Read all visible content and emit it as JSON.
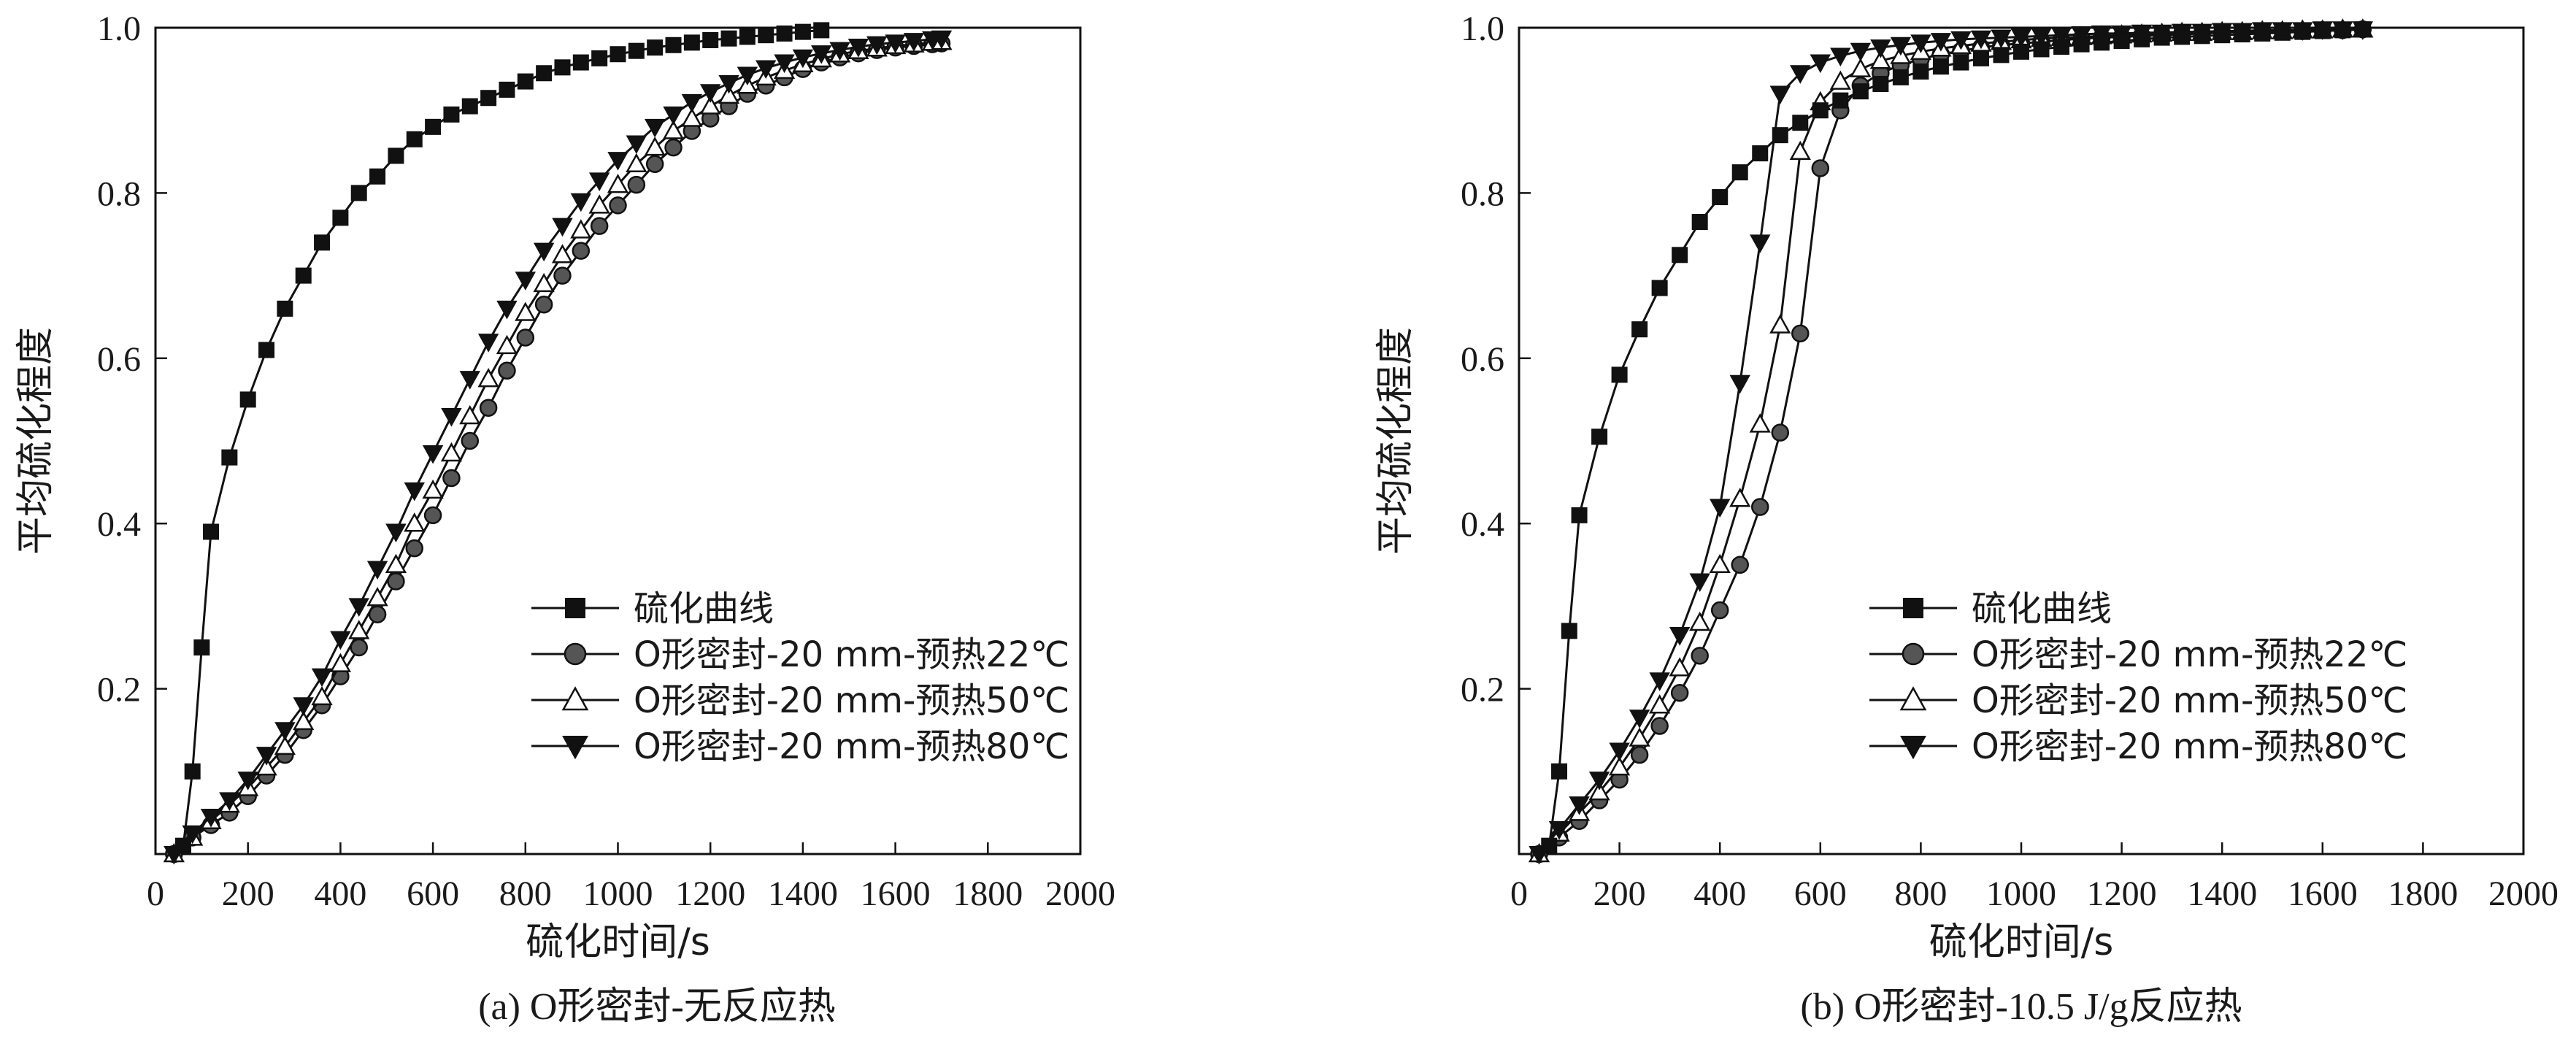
{
  "chart_data": [
    {
      "type": "line",
      "caption": "(a) O形密封-无反应热",
      "xlabel": "硫化时间/s",
      "ylabel": "平均硫化程度",
      "xlim": [
        0,
        2000
      ],
      "ylim": [
        0,
        1.0
      ],
      "xticks": [
        0,
        200,
        400,
        600,
        800,
        1000,
        1200,
        1400,
        1600,
        1800,
        2000
      ],
      "yticks": [
        0.2,
        0.4,
        0.6,
        0.8,
        1.0
      ],
      "xtick_labels": [
        "0",
        "200",
        "400",
        "600",
        "800",
        "1000",
        "1200",
        "1400",
        "1600",
        "1800",
        "2000"
      ],
      "ytick_labels": [
        "0.2",
        "0.4",
        "0.6",
        "0.8",
        "1.0"
      ],
      "legend_position": "bottom-right",
      "series": [
        {
          "name": "硫化曲线",
          "marker": "square",
          "x": [
            60,
            80,
            100,
            120,
            160,
            200,
            240,
            280,
            320,
            360,
            400,
            440,
            480,
            520,
            560,
            600,
            640,
            680,
            720,
            760,
            800,
            840,
            880,
            920,
            960,
            1000,
            1040,
            1080,
            1120,
            1160,
            1200,
            1240,
            1280,
            1320,
            1360,
            1400,
            1440
          ],
          "y": [
            0.01,
            0.1,
            0.25,
            0.39,
            0.48,
            0.55,
            0.61,
            0.66,
            0.7,
            0.74,
            0.77,
            0.8,
            0.82,
            0.845,
            0.865,
            0.88,
            0.895,
            0.905,
            0.915,
            0.925,
            0.935,
            0.945,
            0.952,
            0.958,
            0.963,
            0.968,
            0.972,
            0.976,
            0.979,
            0.982,
            0.985,
            0.987,
            0.989,
            0.991,
            0.993,
            0.995,
            0.997
          ]
        },
        {
          "name": "O形密封-20 mm-预热22℃",
          "marker": "circle",
          "x": [
            40,
            80,
            120,
            160,
            200,
            240,
            280,
            320,
            360,
            400,
            440,
            480,
            520,
            560,
            600,
            640,
            680,
            720,
            760,
            800,
            840,
            880,
            920,
            960,
            1000,
            1040,
            1080,
            1120,
            1160,
            1200,
            1240,
            1280,
            1320,
            1360,
            1400,
            1440,
            1480,
            1520,
            1560,
            1600,
            1640,
            1680,
            1700
          ],
          "y": [
            0.0,
            0.02,
            0.035,
            0.05,
            0.07,
            0.095,
            0.12,
            0.15,
            0.18,
            0.215,
            0.25,
            0.29,
            0.33,
            0.37,
            0.41,
            0.455,
            0.5,
            0.54,
            0.585,
            0.625,
            0.665,
            0.7,
            0.73,
            0.76,
            0.785,
            0.81,
            0.835,
            0.855,
            0.875,
            0.89,
            0.905,
            0.92,
            0.93,
            0.94,
            0.95,
            0.958,
            0.964,
            0.969,
            0.973,
            0.976,
            0.978,
            0.98,
            0.981
          ]
        },
        {
          "name": "O形密封-20 mm-预热50℃",
          "marker": "triangle-up",
          "x": [
            40,
            80,
            120,
            160,
            200,
            240,
            280,
            320,
            360,
            400,
            440,
            480,
            520,
            560,
            600,
            640,
            680,
            720,
            760,
            800,
            840,
            880,
            920,
            960,
            1000,
            1040,
            1080,
            1120,
            1160,
            1200,
            1240,
            1280,
            1320,
            1360,
            1400,
            1440,
            1480,
            1520,
            1560,
            1600,
            1640,
            1680,
            1700
          ],
          "y": [
            0.0,
            0.02,
            0.04,
            0.06,
            0.08,
            0.105,
            0.13,
            0.16,
            0.19,
            0.23,
            0.27,
            0.31,
            0.35,
            0.4,
            0.44,
            0.485,
            0.53,
            0.575,
            0.615,
            0.655,
            0.69,
            0.725,
            0.755,
            0.785,
            0.81,
            0.835,
            0.855,
            0.875,
            0.89,
            0.905,
            0.918,
            0.93,
            0.94,
            0.948,
            0.956,
            0.962,
            0.968,
            0.972,
            0.975,
            0.978,
            0.98,
            0.982,
            0.983
          ]
        },
        {
          "name": "O形密封-20 mm-预热80℃",
          "marker": "triangle-down",
          "x": [
            40,
            80,
            120,
            160,
            200,
            240,
            280,
            320,
            360,
            400,
            440,
            480,
            520,
            560,
            600,
            640,
            680,
            720,
            760,
            800,
            840,
            880,
            920,
            960,
            1000,
            1040,
            1080,
            1120,
            1160,
            1200,
            1240,
            1280,
            1320,
            1360,
            1400,
            1440,
            1480,
            1520,
            1560,
            1600,
            1640,
            1680,
            1700
          ],
          "y": [
            0.0,
            0.025,
            0.045,
            0.065,
            0.09,
            0.12,
            0.15,
            0.18,
            0.215,
            0.26,
            0.3,
            0.345,
            0.39,
            0.44,
            0.485,
            0.53,
            0.575,
            0.62,
            0.66,
            0.695,
            0.73,
            0.76,
            0.79,
            0.815,
            0.84,
            0.86,
            0.88,
            0.895,
            0.91,
            0.922,
            0.933,
            0.943,
            0.951,
            0.958,
            0.964,
            0.969,
            0.973,
            0.977,
            0.98,
            0.982,
            0.984,
            0.986,
            0.987
          ]
        }
      ]
    },
    {
      "type": "line",
      "caption": "(b) O形密封-10.5 J/g反应热",
      "xlabel": "硫化时间/s",
      "ylabel": "平均硫化程度",
      "xlim": [
        0,
        2000
      ],
      "ylim": [
        0,
        1.0
      ],
      "xticks": [
        0,
        200,
        400,
        600,
        800,
        1000,
        1200,
        1400,
        1600,
        1800,
        2000
      ],
      "yticks": [
        0.2,
        0.4,
        0.6,
        0.8,
        1.0
      ],
      "xtick_labels": [
        "0",
        "200",
        "400",
        "600",
        "800",
        "1000",
        "1200",
        "1400",
        "1600",
        "1800",
        "2000"
      ],
      "ytick_labels": [
        "0.2",
        "0.4",
        "0.6",
        "0.8",
        "1.0"
      ],
      "legend_position": "bottom-right",
      "series": [
        {
          "name": "硫化曲线",
          "marker": "square",
          "x": [
            60,
            80,
            100,
            120,
            160,
            200,
            240,
            280,
            320,
            360,
            400,
            440,
            480,
            520,
            560,
            600,
            640,
            680,
            720,
            760,
            800,
            840,
            880,
            920,
            960,
            1000,
            1040,
            1080,
            1120,
            1160,
            1200,
            1240,
            1280,
            1320,
            1360,
            1400,
            1440,
            1480,
            1520,
            1560,
            1600,
            1640,
            1680
          ],
          "y": [
            0.01,
            0.1,
            0.27,
            0.41,
            0.505,
            0.58,
            0.635,
            0.685,
            0.725,
            0.765,
            0.795,
            0.825,
            0.848,
            0.87,
            0.885,
            0.9,
            0.912,
            0.923,
            0.932,
            0.94,
            0.947,
            0.953,
            0.958,
            0.963,
            0.967,
            0.971,
            0.974,
            0.977,
            0.98,
            0.982,
            0.984,
            0.986,
            0.988,
            0.989,
            0.99,
            0.991,
            0.992,
            0.993,
            0.994,
            0.995,
            0.996,
            0.997,
            0.998
          ]
        },
        {
          "name": "O形密封-20 mm-预热22℃",
          "marker": "circle",
          "x": [
            40,
            80,
            120,
            160,
            200,
            240,
            280,
            320,
            360,
            400,
            440,
            480,
            520,
            560,
            600,
            640,
            680,
            720,
            760,
            800,
            840,
            880,
            920,
            960,
            1000,
            1040,
            1080,
            1120,
            1160,
            1200,
            1240,
            1280,
            1320,
            1360,
            1400,
            1440,
            1480,
            1520,
            1560,
            1600,
            1640,
            1680
          ],
          "y": [
            0.0,
            0.02,
            0.04,
            0.065,
            0.09,
            0.12,
            0.155,
            0.195,
            0.24,
            0.295,
            0.35,
            0.42,
            0.51,
            0.63,
            0.83,
            0.9,
            0.93,
            0.945,
            0.955,
            0.962,
            0.968,
            0.972,
            0.976,
            0.979,
            0.981,
            0.983,
            0.985,
            0.987,
            0.988,
            0.989,
            0.99,
            0.991,
            0.992,
            0.993,
            0.994,
            0.995,
            0.995,
            0.996,
            0.996,
            0.997,
            0.997,
            0.998
          ]
        },
        {
          "name": "O形密封-20 mm-预热50℃",
          "marker": "triangle-up",
          "x": [
            40,
            80,
            120,
            160,
            200,
            240,
            280,
            320,
            360,
            400,
            440,
            480,
            520,
            560,
            600,
            640,
            680,
            720,
            760,
            800,
            840,
            880,
            920,
            960,
            1000,
            1040,
            1080,
            1120,
            1160,
            1200,
            1240,
            1280,
            1320,
            1360,
            1400,
            1440,
            1480,
            1520,
            1560,
            1600,
            1640,
            1680
          ],
          "y": [
            0.0,
            0.025,
            0.05,
            0.075,
            0.105,
            0.14,
            0.18,
            0.225,
            0.28,
            0.35,
            0.43,
            0.52,
            0.64,
            0.85,
            0.91,
            0.935,
            0.95,
            0.96,
            0.966,
            0.971,
            0.975,
            0.978,
            0.981,
            0.983,
            0.985,
            0.987,
            0.988,
            0.989,
            0.99,
            0.991,
            0.992,
            0.993,
            0.994,
            0.994,
            0.995,
            0.995,
            0.996,
            0.996,
            0.997,
            0.997,
            0.998,
            0.998
          ]
        },
        {
          "name": "O形密封-20 mm-预热80℃",
          "marker": "triangle-down",
          "x": [
            40,
            80,
            120,
            160,
            200,
            240,
            280,
            320,
            360,
            400,
            440,
            480,
            520,
            560,
            600,
            640,
            680,
            720,
            760,
            800,
            840,
            880,
            920,
            960,
            1000,
            1040,
            1080,
            1120,
            1160,
            1200,
            1240,
            1280,
            1320,
            1360,
            1400,
            1440,
            1480,
            1520,
            1560,
            1600,
            1640,
            1680
          ],
          "y": [
            0.0,
            0.03,
            0.06,
            0.09,
            0.125,
            0.165,
            0.21,
            0.265,
            0.33,
            0.42,
            0.57,
            0.74,
            0.92,
            0.945,
            0.958,
            0.966,
            0.972,
            0.976,
            0.979,
            0.982,
            0.984,
            0.986,
            0.987,
            0.988,
            0.989,
            0.99,
            0.991,
            0.992,
            0.993,
            0.993,
            0.994,
            0.994,
            0.995,
            0.995,
            0.996,
            0.996,
            0.997,
            0.997,
            0.997,
            0.998,
            0.998,
            0.998
          ]
        }
      ]
    }
  ]
}
